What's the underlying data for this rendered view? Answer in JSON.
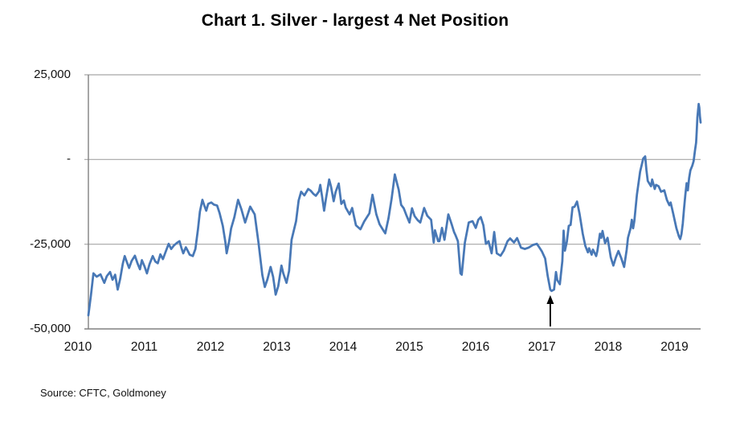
{
  "page": {
    "title": "Chart 1. Silver - largest 4 Net Position",
    "source": "Source: CFTC, Goldmoney"
  },
  "chart_data": {
    "type": "line",
    "title": "Chart 1. Silver - largest 4 Net Position",
    "xlabel": "",
    "ylabel": "",
    "x_range": [
      2010,
      2019.61
    ],
    "y_range": [
      -50000,
      25000
    ],
    "grid": true,
    "legend": "none",
    "line_color": "#4878b6",
    "gridline_color": "#a6a6a6",
    "axis_color": "#808080",
    "x_ticks": [
      "2010",
      "2011",
      "2012",
      "2013",
      "2014",
      "2015",
      "2016",
      "2017",
      "2018",
      "2019"
    ],
    "y_ticks": [
      {
        "value": 25000,
        "label": "25,000"
      },
      {
        "value": 0,
        "label": "-"
      },
      {
        "value": -25000,
        "label": "-25,000"
      },
      {
        "value": -50000,
        "label": "-50,000"
      }
    ],
    "annotations": [
      {
        "type": "up-arrow",
        "x": 2017.25,
        "points_to_value": -38800
      }
    ],
    "series": [
      {
        "color": "#4878b6",
        "points": [
          [
            2010.0,
            -46000
          ],
          [
            2010.04,
            -40000
          ],
          [
            2010.08,
            -33600
          ],
          [
            2010.13,
            -34600
          ],
          [
            2010.19,
            -33900
          ],
          [
            2010.25,
            -36400
          ],
          [
            2010.29,
            -34400
          ],
          [
            2010.34,
            -33200
          ],
          [
            2010.38,
            -35500
          ],
          [
            2010.42,
            -34000
          ],
          [
            2010.46,
            -38400
          ],
          [
            2010.5,
            -35200
          ],
          [
            2010.54,
            -30800
          ],
          [
            2010.57,
            -28500
          ],
          [
            2010.61,
            -30600
          ],
          [
            2010.64,
            -32000
          ],
          [
            2010.68,
            -29900
          ],
          [
            2010.73,
            -28400
          ],
          [
            2010.77,
            -30600
          ],
          [
            2010.81,
            -32400
          ],
          [
            2010.84,
            -29700
          ],
          [
            2010.88,
            -31500
          ],
          [
            2010.92,
            -33600
          ],
          [
            2010.96,
            -30900
          ],
          [
            2011.01,
            -28500
          ],
          [
            2011.05,
            -30100
          ],
          [
            2011.09,
            -30600
          ],
          [
            2011.13,
            -28000
          ],
          [
            2011.17,
            -29400
          ],
          [
            2011.21,
            -27400
          ],
          [
            2011.26,
            -24900
          ],
          [
            2011.3,
            -26400
          ],
          [
            2011.34,
            -25400
          ],
          [
            2011.39,
            -24600
          ],
          [
            2011.43,
            -24100
          ],
          [
            2011.46,
            -26100
          ],
          [
            2011.49,
            -27700
          ],
          [
            2011.53,
            -25900
          ],
          [
            2011.55,
            -26600
          ],
          [
            2011.59,
            -28100
          ],
          [
            2011.64,
            -28500
          ],
          [
            2011.68,
            -26400
          ],
          [
            2011.72,
            -20600
          ],
          [
            2011.75,
            -15400
          ],
          [
            2011.79,
            -11900
          ],
          [
            2011.82,
            -13600
          ],
          [
            2011.85,
            -15100
          ],
          [
            2011.88,
            -13100
          ],
          [
            2011.93,
            -12700
          ],
          [
            2011.97,
            -13300
          ],
          [
            2012.02,
            -13600
          ],
          [
            2012.06,
            -15800
          ],
          [
            2012.11,
            -19600
          ],
          [
            2012.15,
            -24400
          ],
          [
            2012.17,
            -27700
          ],
          [
            2012.21,
            -24100
          ],
          [
            2012.24,
            -20400
          ],
          [
            2012.29,
            -17100
          ],
          [
            2012.35,
            -11900
          ],
          [
            2012.4,
            -14600
          ],
          [
            2012.46,
            -18600
          ],
          [
            2012.54,
            -13900
          ],
          [
            2012.61,
            -16200
          ],
          [
            2012.67,
            -24500
          ],
          [
            2012.73,
            -34100
          ],
          [
            2012.77,
            -37600
          ],
          [
            2012.81,
            -35400
          ],
          [
            2012.86,
            -31700
          ],
          [
            2012.9,
            -34600
          ],
          [
            2012.92,
            -37200
          ],
          [
            2012.94,
            -39900
          ],
          [
            2012.98,
            -37400
          ],
          [
            2013.03,
            -31300
          ],
          [
            2013.06,
            -33600
          ],
          [
            2013.11,
            -36400
          ],
          [
            2013.15,
            -32900
          ],
          [
            2013.19,
            -23700
          ],
          [
            2013.26,
            -18200
          ],
          [
            2013.3,
            -12100
          ],
          [
            2013.34,
            -9500
          ],
          [
            2013.39,
            -10600
          ],
          [
            2013.45,
            -8700
          ],
          [
            2013.49,
            -9200
          ],
          [
            2013.53,
            -10100
          ],
          [
            2013.57,
            -10700
          ],
          [
            2013.62,
            -9400
          ],
          [
            2013.64,
            -7500
          ],
          [
            2013.67,
            -11100
          ],
          [
            2013.7,
            -15100
          ],
          [
            2013.73,
            -11400
          ],
          [
            2013.78,
            -5900
          ],
          [
            2013.81,
            -8100
          ],
          [
            2013.85,
            -12300
          ],
          [
            2013.88,
            -9600
          ],
          [
            2013.93,
            -7100
          ],
          [
            2013.97,
            -13100
          ],
          [
            2014.01,
            -12100
          ],
          [
            2014.04,
            -14200
          ],
          [
            2014.1,
            -16200
          ],
          [
            2014.14,
            -14300
          ],
          [
            2014.2,
            -19400
          ],
          [
            2014.27,
            -20600
          ],
          [
            2014.33,
            -18300
          ],
          [
            2014.41,
            -15900
          ],
          [
            2014.46,
            -10400
          ],
          [
            2014.52,
            -16200
          ],
          [
            2014.57,
            -19100
          ],
          [
            2014.62,
            -20600
          ],
          [
            2014.66,
            -21800
          ],
          [
            2014.71,
            -17400
          ],
          [
            2014.76,
            -11600
          ],
          [
            2014.81,
            -4400
          ],
          [
            2014.84,
            -6700
          ],
          [
            2014.87,
            -8900
          ],
          [
            2014.91,
            -13400
          ],
          [
            2014.95,
            -14400
          ],
          [
            2014.99,
            -16400
          ],
          [
            2015.04,
            -18600
          ],
          [
            2015.08,
            -14400
          ],
          [
            2015.12,
            -16700
          ],
          [
            2015.17,
            -17900
          ],
          [
            2015.21,
            -18600
          ],
          [
            2015.27,
            -14300
          ],
          [
            2015.32,
            -16600
          ],
          [
            2015.38,
            -17800
          ],
          [
            2015.42,
            -24500
          ],
          [
            2015.44,
            -20900
          ],
          [
            2015.49,
            -24100
          ],
          [
            2015.51,
            -24100
          ],
          [
            2015.55,
            -20200
          ],
          [
            2015.59,
            -23700
          ],
          [
            2015.65,
            -16200
          ],
          [
            2015.7,
            -19000
          ],
          [
            2015.74,
            -21400
          ],
          [
            2015.76,
            -22200
          ],
          [
            2015.8,
            -24100
          ],
          [
            2015.84,
            -33600
          ],
          [
            2015.86,
            -34000
          ],
          [
            2015.91,
            -24500
          ],
          [
            2015.97,
            -18600
          ],
          [
            2016.03,
            -18200
          ],
          [
            2016.08,
            -20200
          ],
          [
            2016.12,
            -17800
          ],
          [
            2016.16,
            -17000
          ],
          [
            2016.2,
            -19400
          ],
          [
            2016.24,
            -24900
          ],
          [
            2016.28,
            -24100
          ],
          [
            2016.33,
            -27700
          ],
          [
            2016.37,
            -21400
          ],
          [
            2016.41,
            -27700
          ],
          [
            2016.47,
            -28400
          ],
          [
            2016.52,
            -26900
          ],
          [
            2016.58,
            -24100
          ],
          [
            2016.62,
            -23300
          ],
          [
            2016.68,
            -24500
          ],
          [
            2016.73,
            -23200
          ],
          [
            2016.79,
            -26000
          ],
          [
            2016.85,
            -26400
          ],
          [
            2016.91,
            -26000
          ],
          [
            2016.98,
            -25200
          ],
          [
            2017.04,
            -24900
          ],
          [
            2017.08,
            -26000
          ],
          [
            2017.12,
            -27200
          ],
          [
            2017.17,
            -29200
          ],
          [
            2017.21,
            -34400
          ],
          [
            2017.25,
            -38400
          ],
          [
            2017.27,
            -38800
          ],
          [
            2017.31,
            -38400
          ],
          [
            2017.34,
            -33200
          ],
          [
            2017.36,
            -35600
          ],
          [
            2017.4,
            -36800
          ],
          [
            2017.44,
            -30000
          ],
          [
            2017.46,
            -21000
          ],
          [
            2017.48,
            -26900
          ],
          [
            2017.51,
            -24300
          ],
          [
            2017.54,
            -19600
          ],
          [
            2017.57,
            -19300
          ],
          [
            2017.6,
            -14100
          ],
          [
            2017.63,
            -14000
          ],
          [
            2017.67,
            -12400
          ],
          [
            2017.71,
            -16000
          ],
          [
            2017.76,
            -21900
          ],
          [
            2017.8,
            -25500
          ],
          [
            2017.84,
            -27400
          ],
          [
            2017.86,
            -26200
          ],
          [
            2017.9,
            -28100
          ],
          [
            2017.92,
            -26600
          ],
          [
            2017.97,
            -28500
          ],
          [
            2017.99,
            -27000
          ],
          [
            2018.03,
            -21900
          ],
          [
            2018.05,
            -23100
          ],
          [
            2018.07,
            -21100
          ],
          [
            2018.11,
            -24700
          ],
          [
            2018.15,
            -23100
          ],
          [
            2018.2,
            -28900
          ],
          [
            2018.24,
            -31300
          ],
          [
            2018.28,
            -28900
          ],
          [
            2018.32,
            -27000
          ],
          [
            2018.36,
            -28900
          ],
          [
            2018.41,
            -31700
          ],
          [
            2018.45,
            -26600
          ],
          [
            2018.47,
            -23100
          ],
          [
            2018.51,
            -20300
          ],
          [
            2018.53,
            -17800
          ],
          [
            2018.55,
            -20300
          ],
          [
            2018.57,
            -18200
          ],
          [
            2018.61,
            -10400
          ],
          [
            2018.66,
            -3600
          ],
          [
            2018.71,
            300
          ],
          [
            2018.74,
            900
          ],
          [
            2018.76,
            -3200
          ],
          [
            2018.78,
            -6300
          ],
          [
            2018.83,
            -7900
          ],
          [
            2018.85,
            -5900
          ],
          [
            2018.89,
            -8700
          ],
          [
            2018.91,
            -7500
          ],
          [
            2018.95,
            -7900
          ],
          [
            2018.99,
            -9500
          ],
          [
            2019.04,
            -9100
          ],
          [
            2019.08,
            -11900
          ],
          [
            2019.12,
            -13500
          ],
          [
            2019.14,
            -12700
          ],
          [
            2019.18,
            -16000
          ],
          [
            2019.23,
            -20300
          ],
          [
            2019.27,
            -22700
          ],
          [
            2019.29,
            -23500
          ],
          [
            2019.31,
            -22000
          ],
          [
            2019.33,
            -18900
          ],
          [
            2019.35,
            -14400
          ],
          [
            2019.37,
            -10400
          ],
          [
            2019.39,
            -7000
          ],
          [
            2019.41,
            -9100
          ],
          [
            2019.43,
            -5500
          ],
          [
            2019.45,
            -3200
          ],
          [
            2019.48,
            -1800
          ],
          [
            2019.5,
            -500
          ],
          [
            2019.52,
            2500
          ],
          [
            2019.54,
            5000
          ],
          [
            2019.55,
            8500
          ],
          [
            2019.56,
            12500
          ],
          [
            2019.58,
            16400
          ],
          [
            2019.59,
            15300
          ],
          [
            2019.6,
            12600
          ],
          [
            2019.61,
            10900
          ]
        ]
      }
    ],
    "source": "Source: CFTC, Goldmoney"
  }
}
